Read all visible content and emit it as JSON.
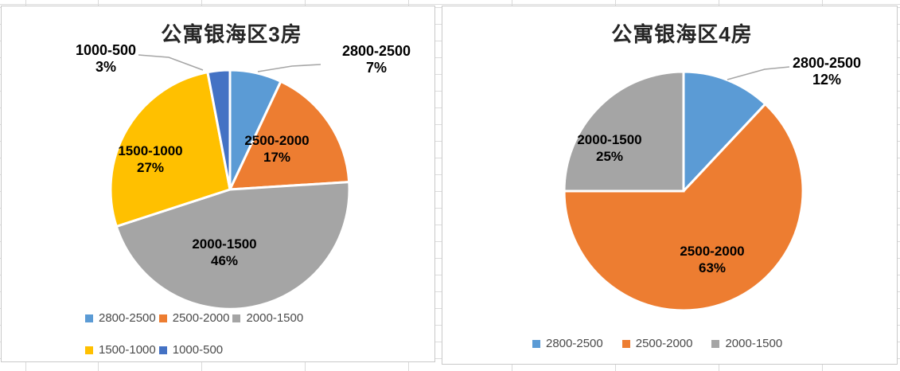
{
  "app_context": "spreadsheet-charts",
  "grid_color": "#d9d9d9",
  "panel_border_color": "#c9c9c9",
  "leader_line_color": "#a6a6a6",
  "chart_data": [
    {
      "type": "pie",
      "title": "公寓银海区3房",
      "categories": [
        "2800-2500",
        "2500-2000",
        "2000-1500",
        "1500-1000",
        "1000-500"
      ],
      "values": [
        7,
        17,
        46,
        27,
        3
      ],
      "value_unit": "%",
      "colors": [
        "#5B9BD5",
        "#ED7D31",
        "#A5A5A5",
        "#FFC000",
        "#4472C4"
      ],
      "start_angle_deg": 0,
      "direction": "clockwise",
      "data_labels": [
        "2800-2500 7%",
        "2500-2000 17%",
        "2000-1500 46%",
        "1500-1000 27%",
        "1000-500 3%"
      ],
      "legend_position": "bottom",
      "legend_entries": [
        "2800-2500",
        "2500-2000",
        "2000-1500",
        "1500-1000",
        "1000-500"
      ]
    },
    {
      "type": "pie",
      "title": "公寓银海区4房",
      "categories": [
        "2800-2500",
        "2500-2000",
        "2000-1500"
      ],
      "values": [
        12,
        63,
        25
      ],
      "value_unit": "%",
      "colors": [
        "#5B9BD5",
        "#ED7D31",
        "#A5A5A5"
      ],
      "start_angle_deg": 0,
      "direction": "clockwise",
      "data_labels": [
        "2800-2500 12%",
        "2500-2000 63%",
        "2000-1500 25%"
      ],
      "legend_position": "bottom",
      "legend_entries": [
        "2800-2500",
        "2500-2000",
        "2000-1500"
      ]
    }
  ]
}
